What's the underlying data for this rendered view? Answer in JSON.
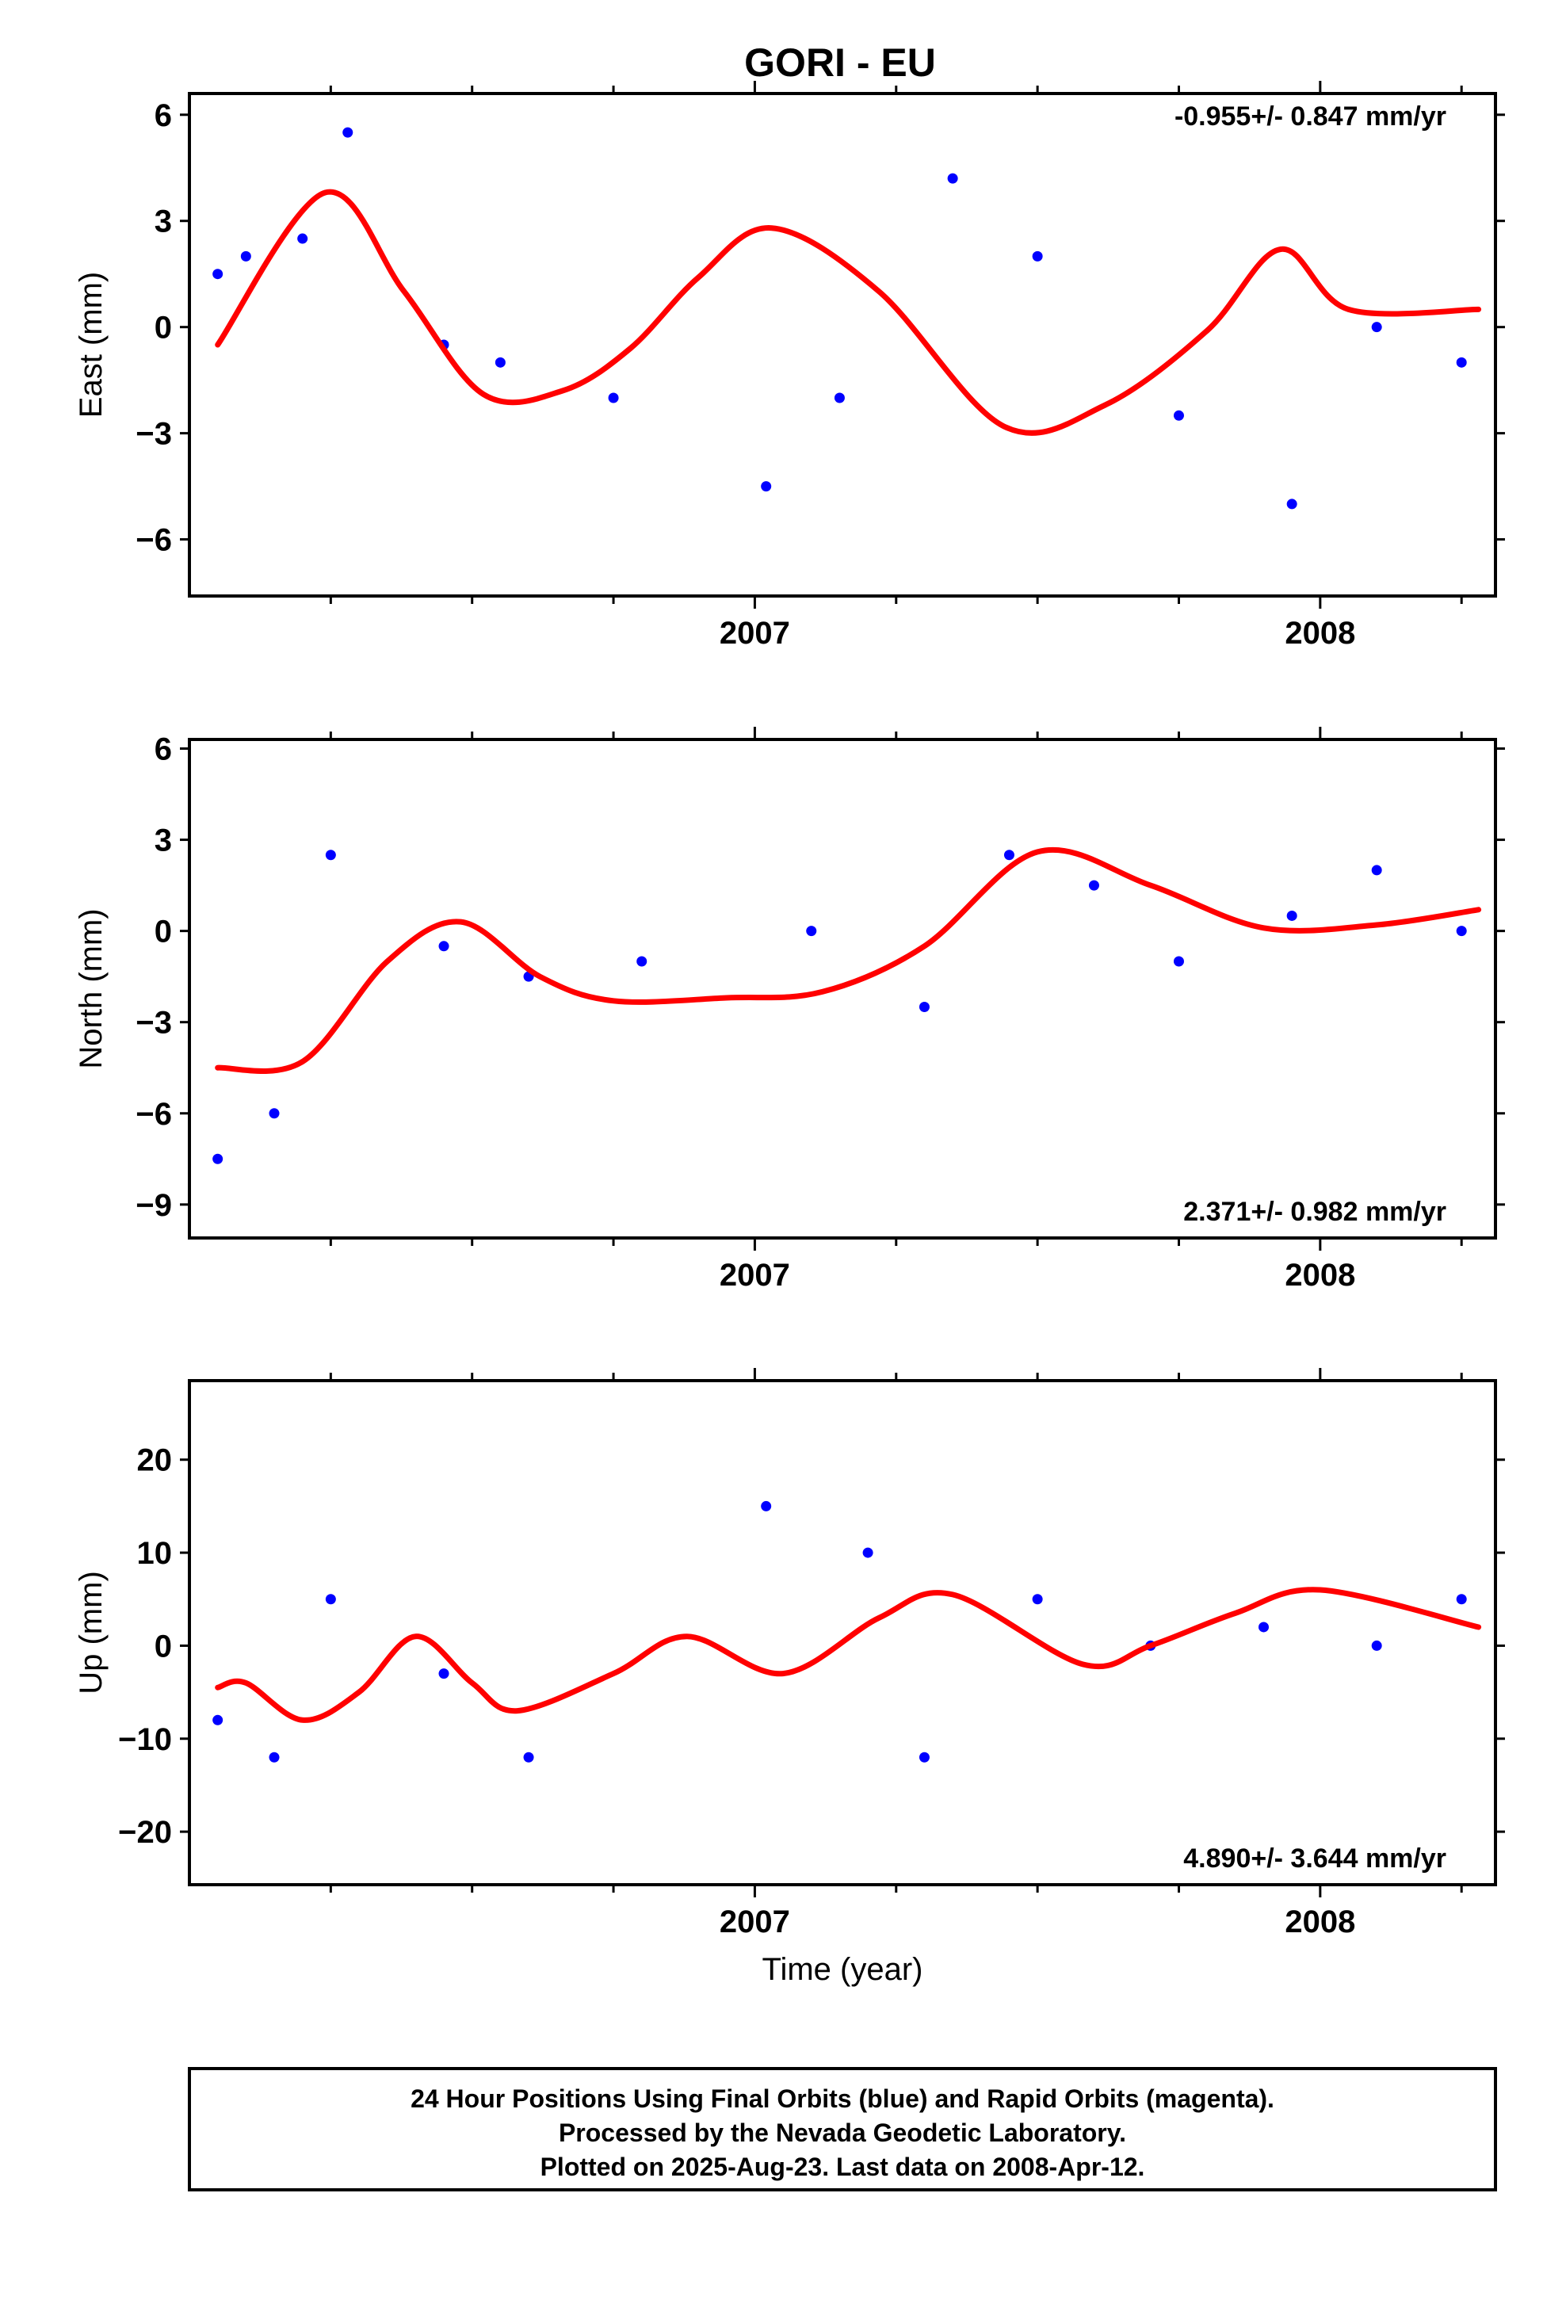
{
  "title": "GORI - EU",
  "footer": {
    "lines": [
      "24 Hour Positions Using Final Orbits (blue) and Rapid Orbits (magenta).",
      "Processed by the Nevada Geodetic Laboratory.",
      "Plotted on 2025-Aug-23. Last data on 2008-Apr-12."
    ]
  },
  "colors": {
    "points": "#0000ff",
    "model": "#ff0000",
    "frame": "#000000",
    "background": "#ffffff"
  },
  "chart_data": [
    {
      "type": "scatter",
      "component": "East",
      "ylabel": "East (mm)",
      "xlabel": "",
      "xlim": [
        2006.0,
        2008.31
      ],
      "ylim": [
        -7.6,
        6.6
      ],
      "xticks_labeled": [
        "2007",
        "2008"
      ],
      "yticks": [
        "6",
        "3",
        "0",
        "−3",
        "−6"
      ],
      "rate": "-0.955+/- 0.847 mm/yr",
      "rate_position": "top-right",
      "points_sample": [
        [
          2006.05,
          1.5
        ],
        [
          2006.1,
          2.0
        ],
        [
          2006.2,
          2.5
        ],
        [
          2006.28,
          5.5
        ],
        [
          2006.45,
          -0.5
        ],
        [
          2006.55,
          -1.0
        ],
        [
          2006.75,
          -2.0
        ],
        [
          2007.02,
          -4.5
        ],
        [
          2007.15,
          -2.0
        ],
        [
          2007.35,
          4.2
        ],
        [
          2007.5,
          2.0
        ],
        [
          2007.75,
          -2.5
        ],
        [
          2007.95,
          -5.0
        ],
        [
          2008.1,
          0.0
        ],
        [
          2008.25,
          -1.0
        ]
      ],
      "model_sample": [
        [
          2006.05,
          -0.5
        ],
        [
          2006.24,
          3.8
        ],
        [
          2006.38,
          1.0
        ],
        [
          2006.52,
          -1.9
        ],
        [
          2006.66,
          -1.8
        ],
        [
          2006.78,
          -0.6
        ],
        [
          2006.9,
          1.4
        ],
        [
          2007.03,
          2.8
        ],
        [
          2007.22,
          1.0
        ],
        [
          2007.44,
          -2.8
        ],
        [
          2007.62,
          -2.2
        ],
        [
          2007.8,
          -0.1
        ],
        [
          2007.93,
          2.2
        ],
        [
          2008.05,
          0.5
        ],
        [
          2008.28,
          0.5
        ]
      ]
    },
    {
      "type": "scatter",
      "component": "North",
      "ylabel": "North (mm)",
      "xlabel": "",
      "xlim": [
        2006.0,
        2008.31
      ],
      "ylim": [
        -10.1,
        6.3
      ],
      "xticks_labeled": [
        "2007",
        "2008"
      ],
      "yticks": [
        "6",
        "3",
        "0",
        "−3",
        "−6",
        "−9"
      ],
      "rate": "2.371+/- 0.982 mm/yr",
      "rate_position": "bottom-right",
      "points_sample": [
        [
          2006.05,
          -7.5
        ],
        [
          2006.15,
          -6.0
        ],
        [
          2006.25,
          2.5
        ],
        [
          2006.45,
          -0.5
        ],
        [
          2006.6,
          -1.5
        ],
        [
          2006.8,
          -1.0
        ],
        [
          2007.1,
          0.0
        ],
        [
          2007.3,
          -2.5
        ],
        [
          2007.45,
          2.5
        ],
        [
          2007.6,
          1.5
        ],
        [
          2007.75,
          -1.0
        ],
        [
          2007.95,
          0.5
        ],
        [
          2008.1,
          2.0
        ],
        [
          2008.25,
          0.0
        ]
      ],
      "model_sample": [
        [
          2006.05,
          -4.5
        ],
        [
          2006.2,
          -4.3
        ],
        [
          2006.35,
          -1.0
        ],
        [
          2006.48,
          0.3
        ],
        [
          2006.62,
          -1.5
        ],
        [
          2006.75,
          -2.3
        ],
        [
          2006.95,
          -2.2
        ],
        [
          2007.12,
          -2.0
        ],
        [
          2007.3,
          -0.5
        ],
        [
          2007.5,
          2.6
        ],
        [
          2007.7,
          1.5
        ],
        [
          2007.9,
          0.1
        ],
        [
          2008.1,
          0.2
        ],
        [
          2008.28,
          0.7
        ]
      ]
    },
    {
      "type": "scatter",
      "component": "Up",
      "ylabel": "Up (mm)",
      "xlabel": "Time (year)",
      "xlim": [
        2006.0,
        2008.31
      ],
      "ylim": [
        -25.7,
        28.5
      ],
      "xticks_labeled": [
        "2007",
        "2008"
      ],
      "yticks": [
        "20",
        "10",
        "0",
        "−10",
        "−20"
      ],
      "rate": "4.890+/- 3.644 mm/yr",
      "rate_position": "bottom-right",
      "points_sample": [
        [
          2006.05,
          -8.0
        ],
        [
          2006.15,
          -12.0
        ],
        [
          2006.25,
          5.0
        ],
        [
          2006.45,
          -3.0
        ],
        [
          2006.6,
          -12.0
        ],
        [
          2007.02,
          15.0
        ],
        [
          2007.2,
          10.0
        ],
        [
          2007.3,
          -12.0
        ],
        [
          2007.5,
          5.0
        ],
        [
          2007.7,
          0.0
        ],
        [
          2007.9,
          2.0
        ],
        [
          2008.1,
          0.0
        ],
        [
          2008.25,
          5.0
        ]
      ],
      "model_sample": [
        [
          2006.05,
          -4.5
        ],
        [
          2006.1,
          -4.0
        ],
        [
          2006.2,
          -8.0
        ],
        [
          2006.3,
          -5.0
        ],
        [
          2006.4,
          1.0
        ],
        [
          2006.5,
          -4.0
        ],
        [
          2006.58,
          -7.0
        ],
        [
          2006.75,
          -3.0
        ],
        [
          2006.88,
          1.0
        ],
        [
          2007.05,
          -3.0
        ],
        [
          2007.22,
          3.0
        ],
        [
          2007.35,
          5.5
        ],
        [
          2007.58,
          -2.0
        ],
        [
          2007.7,
          0.0
        ],
        [
          2007.85,
          3.5
        ],
        [
          2008.0,
          6.0
        ],
        [
          2008.28,
          2.0
        ]
      ]
    }
  ]
}
